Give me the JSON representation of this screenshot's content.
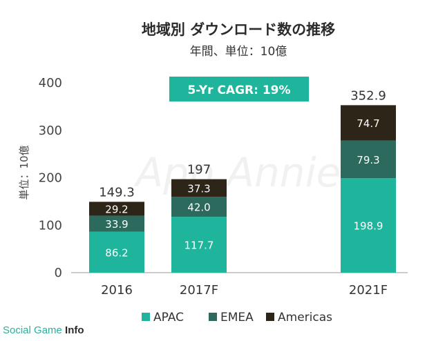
{
  "chart_data": {
    "type": "bar",
    "stacked": true,
    "title": "地域別 ダウンロード数の推移",
    "subtitle": "年間、単位：10億",
    "ylabel": "単位：10億",
    "xlabel": "",
    "ylim": [
      0,
      400
    ],
    "yticks": [
      "0",
      "100",
      "200",
      "300",
      "400"
    ],
    "grid": false,
    "legend_position": "bottom",
    "categories": [
      "2016",
      "2017F",
      "2021F"
    ],
    "totals": [
      "149.3",
      "197",
      "352.9"
    ],
    "series": [
      {
        "name": "APAC",
        "color": "#1fb59d",
        "values": [
          86.2,
          117.7,
          198.9
        ],
        "labels": [
          "86.2",
          "117.7",
          "198.9"
        ],
        "label_color": "#ffffff"
      },
      {
        "name": "EMEA",
        "color": "#2b6a5c",
        "values": [
          33.9,
          42.0,
          79.3
        ],
        "labels": [
          "33.9",
          "42.0",
          "79.3"
        ],
        "label_color": "#ffffff"
      },
      {
        "name": "Americas",
        "color": "#2e2519",
        "values": [
          29.2,
          37.3,
          74.7
        ],
        "labels": [
          "29.2",
          "37.3",
          "74.7"
        ],
        "label_color": "#ffffff"
      }
    ],
    "annotation": "5-Yr CAGR: 19%"
  },
  "watermark": "App Annie",
  "brand": {
    "prefix": "Social Game ",
    "suffix": "Info"
  }
}
